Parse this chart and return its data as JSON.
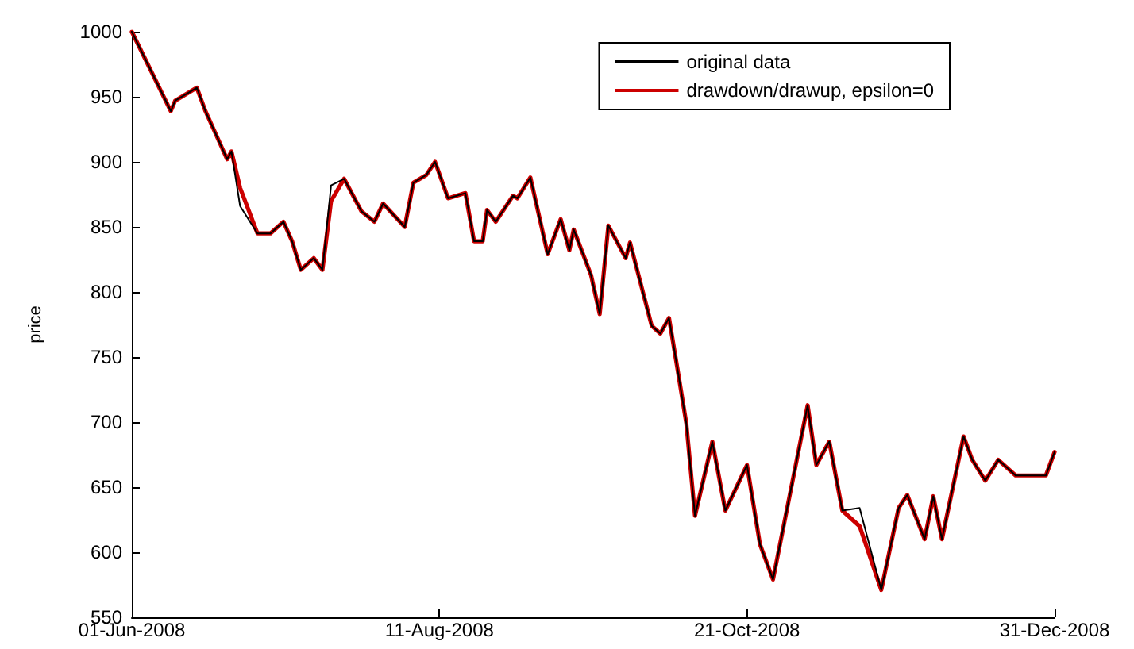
{
  "chart_data": {
    "type": "line",
    "ylabel": "price",
    "x": [
      "2008-06-01",
      "2008-06-10",
      "2008-06-11",
      "2008-06-16",
      "2008-06-18",
      "2008-06-23",
      "2008-06-24",
      "2008-06-26",
      "2008-06-30",
      "2008-07-03",
      "2008-07-06",
      "2008-07-08",
      "2008-07-10",
      "2008-07-13",
      "2008-07-15",
      "2008-07-17",
      "2008-07-20",
      "2008-07-24",
      "2008-07-27",
      "2008-07-29",
      "2008-08-03",
      "2008-08-05",
      "2008-08-08",
      "2008-08-10",
      "2008-08-13",
      "2008-08-17",
      "2008-08-19",
      "2008-08-21",
      "2008-08-22",
      "2008-08-24",
      "2008-08-28",
      "2008-08-29",
      "2008-09-01",
      "2008-09-05",
      "2008-09-08",
      "2008-09-10",
      "2008-09-11",
      "2008-09-15",
      "2008-09-17",
      "2008-09-19",
      "2008-09-23",
      "2008-09-24",
      "2008-09-29",
      "2008-10-01",
      "2008-10-03",
      "2008-10-05",
      "2008-10-07",
      "2008-10-09",
      "2008-10-13",
      "2008-10-16",
      "2008-10-21",
      "2008-10-24",
      "2008-10-27",
      "2008-10-31",
      "2008-11-04",
      "2008-11-06",
      "2008-11-09",
      "2008-11-12",
      "2008-11-16",
      "2008-11-21",
      "2008-11-25",
      "2008-11-27",
      "2008-12-01",
      "2008-12-03",
      "2008-12-05",
      "2008-12-10",
      "2008-12-12",
      "2008-12-15",
      "2008-12-18",
      "2008-12-22",
      "2008-12-29",
      "2008-12-31"
    ],
    "series": [
      {
        "name": "original data",
        "color": "#000000",
        "values": [
          1000,
          939,
          947,
          957,
          939,
          902,
          908,
          866,
          845,
          845,
          854,
          839,
          817,
          826,
          817,
          882,
          887,
          862,
          854,
          868,
          850,
          884,
          890,
          900,
          872,
          876,
          839,
          839,
          863,
          854,
          874,
          872,
          888,
          829,
          856,
          832,
          848,
          813,
          783,
          851,
          826,
          838,
          774,
          768,
          780,
          740,
          699,
          628,
          685,
          632,
          667,
          606,
          579,
          646,
          713,
          667,
          685,
          632,
          634,
          571,
          634,
          644,
          610,
          643,
          610,
          689,
          671,
          655,
          671,
          659,
          659,
          677
        ]
      },
      {
        "name": "drawdown/drawup, epsilon=0",
        "color": "#cc0000",
        "values": [
          1000,
          939,
          947,
          957,
          939,
          902,
          908,
          880,
          845,
          845,
          854,
          839,
          817,
          826,
          817,
          870,
          887,
          862,
          854,
          868,
          850,
          884,
          890,
          900,
          872,
          876,
          839,
          839,
          863,
          854,
          874,
          872,
          888,
          829,
          856,
          832,
          848,
          813,
          783,
          851,
          826,
          838,
          774,
          768,
          780,
          740,
          699,
          628,
          685,
          632,
          667,
          606,
          579,
          646,
          713,
          667,
          685,
          632,
          620,
          571,
          634,
          644,
          610,
          643,
          610,
          689,
          671,
          655,
          671,
          659,
          659,
          677
        ]
      }
    ],
    "xlim": [
      "2008-06-01",
      "2008-12-31"
    ],
    "xticks": [
      {
        "value": "2008-06-01",
        "label": "01-Jun-2008"
      },
      {
        "value": "2008-08-11",
        "label": "11-Aug-2008"
      },
      {
        "value": "2008-10-21",
        "label": "21-Oct-2008"
      },
      {
        "value": "2008-12-31",
        "label": "31-Dec-2008"
      }
    ],
    "ylim": [
      550,
      1000
    ],
    "yticks": [
      550,
      600,
      650,
      700,
      750,
      800,
      850,
      900,
      950,
      1000
    ],
    "grid": false,
    "legend": "top right",
    "marker": "none",
    "line_style": "solid"
  }
}
